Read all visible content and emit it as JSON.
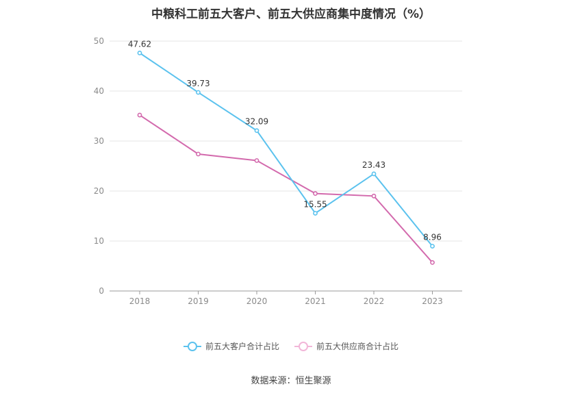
{
  "chart_data": {
    "type": "line",
    "title": "中粮科工前五大客户、前五大供应商集中度情况（%）",
    "categories": [
      "2018",
      "2019",
      "2020",
      "2021",
      "2022",
      "2023"
    ],
    "ylim": [
      0,
      50
    ],
    "yticks": [
      0,
      10,
      20,
      30,
      40,
      50
    ],
    "grid": true,
    "legend_position": "bottom",
    "series": [
      {
        "name": "前五大客户合计占比",
        "color": "#5bc2ee",
        "values": [
          47.62,
          39.73,
          32.09,
          15.55,
          23.43,
          8.96
        ],
        "labels": [
          "47.62",
          "39.73",
          "32.09",
          "15.55",
          "23.43",
          "8.96"
        ]
      },
      {
        "name": "前五大供应商合计占比",
        "color": "#d36aad",
        "values": [
          35.2,
          27.4,
          26.1,
          19.5,
          19.0,
          5.7
        ]
      }
    ]
  },
  "source": "数据来源：恒生聚源"
}
